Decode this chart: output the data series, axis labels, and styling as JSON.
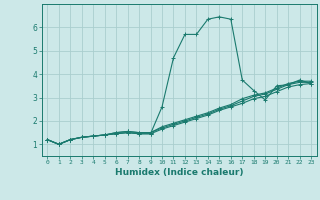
{
  "xlabel": "Humidex (Indice chaleur)",
  "xlim": [
    -0.5,
    23.5
  ],
  "ylim": [
    0.5,
    7.0
  ],
  "xticks": [
    0,
    1,
    2,
    3,
    4,
    5,
    6,
    7,
    8,
    9,
    10,
    11,
    12,
    13,
    14,
    15,
    16,
    17,
    18,
    19,
    20,
    21,
    22,
    23
  ],
  "yticks": [
    1,
    2,
    3,
    4,
    5,
    6
  ],
  "background_color": "#cce8e8",
  "grid_color": "#aacece",
  "line_color": "#1a7a6e",
  "series": [
    {
      "x": [
        0,
        1,
        2,
        3,
        4,
        5,
        6,
        7,
        8,
        9,
        10,
        11,
        12,
        13,
        14,
        15,
        16,
        17,
        18,
        19,
        20,
        21,
        22,
        23
      ],
      "y": [
        1.2,
        1.0,
        1.2,
        1.3,
        1.35,
        1.4,
        1.45,
        1.5,
        1.45,
        1.45,
        2.6,
        4.7,
        5.7,
        5.7,
        6.35,
        6.45,
        6.35,
        3.75,
        3.3,
        2.9,
        3.5,
        3.55,
        3.75,
        3.6
      ]
    },
    {
      "x": [
        0,
        1,
        2,
        3,
        4,
        5,
        6,
        7,
        8,
        9,
        10,
        11,
        12,
        13,
        14,
        15,
        16,
        17,
        18,
        19,
        20,
        21,
        22,
        23
      ],
      "y": [
        1.2,
        1.0,
        1.2,
        1.3,
        1.35,
        1.4,
        1.45,
        1.5,
        1.45,
        1.45,
        1.65,
        1.8,
        1.95,
        2.1,
        2.25,
        2.45,
        2.6,
        2.75,
        2.95,
        3.05,
        3.25,
        3.45,
        3.55,
        3.6
      ]
    },
    {
      "x": [
        0,
        1,
        2,
        3,
        4,
        5,
        6,
        7,
        8,
        9,
        10,
        11,
        12,
        13,
        14,
        15,
        16,
        17,
        18,
        19,
        20,
        21,
        22,
        23
      ],
      "y": [
        1.2,
        1.0,
        1.2,
        1.3,
        1.35,
        1.4,
        1.5,
        1.55,
        1.5,
        1.5,
        1.7,
        1.85,
        2.0,
        2.15,
        2.3,
        2.5,
        2.65,
        2.85,
        3.05,
        3.15,
        3.35,
        3.55,
        3.65,
        3.65
      ]
    },
    {
      "x": [
        0,
        1,
        2,
        3,
        4,
        5,
        6,
        7,
        8,
        9,
        10,
        11,
        12,
        13,
        14,
        15,
        16,
        17,
        18,
        19,
        20,
        21,
        22,
        23
      ],
      "y": [
        1.2,
        1.0,
        1.2,
        1.3,
        1.35,
        1.4,
        1.5,
        1.55,
        1.5,
        1.5,
        1.75,
        1.9,
        2.05,
        2.2,
        2.35,
        2.55,
        2.7,
        2.95,
        3.1,
        3.2,
        3.4,
        3.6,
        3.7,
        3.7
      ]
    }
  ]
}
